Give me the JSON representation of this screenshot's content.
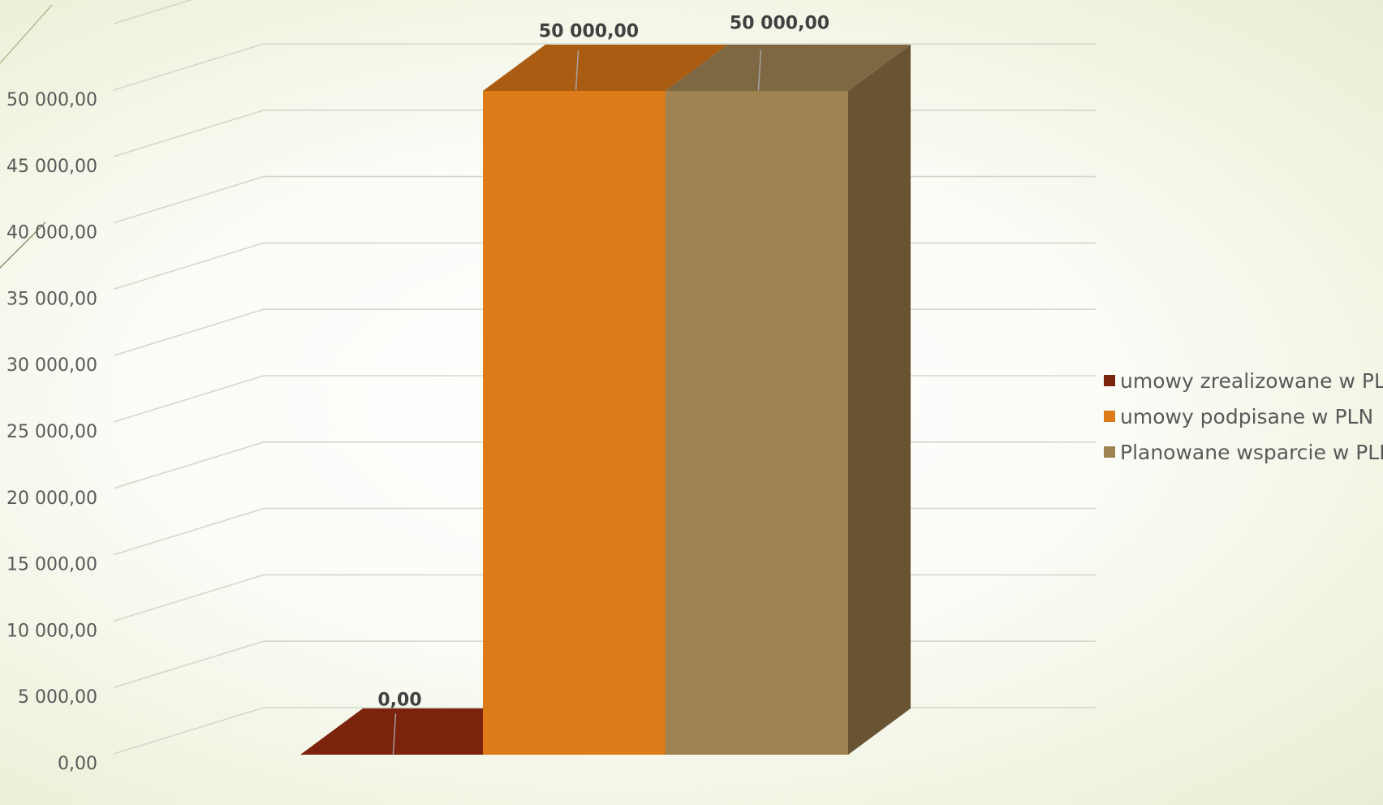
{
  "chart_data": {
    "type": "bar",
    "title": "",
    "xlabel": "",
    "ylabel": "",
    "categories": [
      ""
    ],
    "series": [
      {
        "name": "umowy zrealizowane w PLN",
        "values": [
          0
        ],
        "color": "#7b230c",
        "top_color": "#7b230c",
        "side_color": "#5a1a09"
      },
      {
        "name": "umowy podpisane w PLN",
        "values": [
          50000
        ],
        "color": "#de7b19",
        "top_color": "#a95c12",
        "side_color": "#a95c12"
      },
      {
        "name": "Planowane wsparcie w PLN",
        "values": [
          50000
        ],
        "color": "#9f8351",
        "top_color": "#7d6843",
        "side_color": "#685433"
      }
    ],
    "data_labels": [
      "0,00",
      "50 000,00",
      "50 000,00"
    ],
    "ylim": [
      0,
      55000
    ],
    "y_ticks": [
      0,
      5000,
      10000,
      15000,
      20000,
      25000,
      30000,
      35000,
      40000,
      45000,
      50000
    ],
    "y_tick_labels": [
      "0,00",
      "5 000,00",
      "10 000,00",
      "15 000,00",
      "20 000,00",
      "25 000,00",
      "30 000,00",
      "35 000,00",
      "40 000,00",
      "45 000,00",
      "50 000,00"
    ],
    "grid": true,
    "legend_position": "right",
    "projection": "3d-column"
  },
  "colors": {
    "gridline": "#d4d8cc",
    "background_accent": "#e8eed3"
  }
}
